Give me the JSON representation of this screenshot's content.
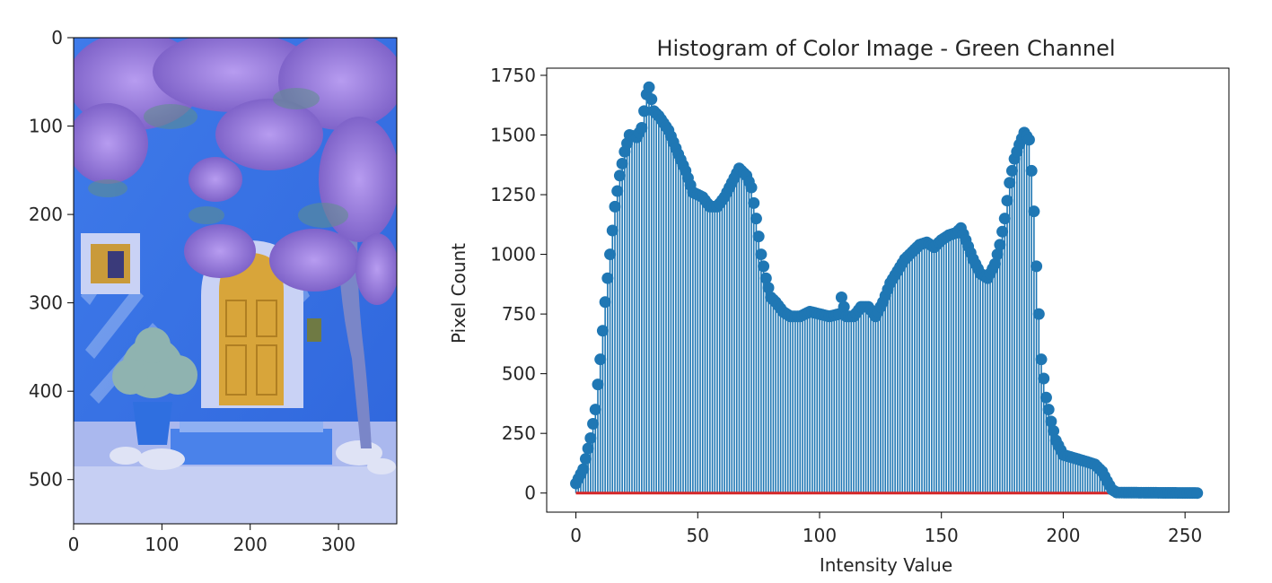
{
  "image_panel": {
    "type": "image",
    "xlim": [
      0,
      366
    ],
    "ylim": [
      550,
      0
    ],
    "xticks": [
      0,
      100,
      200,
      300
    ],
    "yticks": [
      0,
      100,
      200,
      300,
      400,
      500
    ],
    "scene": "blue house wall with a yellow arched door, a small window, a potted plant and purple flowering vines"
  },
  "chart_data": {
    "type": "stem",
    "title": "Histogram of Color Image - Green Channel",
    "xlabel": "Intensity Value",
    "ylabel": "Pixel Count",
    "xlim": [
      -12,
      268
    ],
    "ylim": [
      -80,
      1780
    ],
    "xticks": [
      0,
      50,
      100,
      150,
      200,
      250
    ],
    "yticks": [
      0,
      250,
      500,
      750,
      1000,
      1250,
      1500,
      1750
    ],
    "stem_color": "#1f77b4",
    "baseline_color": "#d62728",
    "anchors": [
      [
        0,
        40
      ],
      [
        3,
        100
      ],
      [
        6,
        230
      ],
      [
        8,
        350
      ],
      [
        10,
        560
      ],
      [
        12,
        800
      ],
      [
        14,
        1000
      ],
      [
        16,
        1200
      ],
      [
        18,
        1330
      ],
      [
        20,
        1430
      ],
      [
        22,
        1500
      ],
      [
        25,
        1490
      ],
      [
        27,
        1530
      ],
      [
        29,
        1670
      ],
      [
        30,
        1700
      ],
      [
        32,
        1600
      ],
      [
        34,
        1580
      ],
      [
        36,
        1550
      ],
      [
        38,
        1520
      ],
      [
        40,
        1470
      ],
      [
        42,
        1420
      ],
      [
        45,
        1350
      ],
      [
        48,
        1260
      ],
      [
        50,
        1250
      ],
      [
        52,
        1240
      ],
      [
        55,
        1200
      ],
      [
        58,
        1200
      ],
      [
        61,
        1240
      ],
      [
        64,
        1300
      ],
      [
        67,
        1360
      ],
      [
        70,
        1330
      ],
      [
        72,
        1280
      ],
      [
        74,
        1150
      ],
      [
        76,
        1000
      ],
      [
        78,
        900
      ],
      [
        80,
        820
      ],
      [
        82,
        800
      ],
      [
        85,
        760
      ],
      [
        88,
        740
      ],
      [
        92,
        740
      ],
      [
        96,
        760
      ],
      [
        100,
        750
      ],
      [
        104,
        740
      ],
      [
        108,
        750
      ],
      [
        109,
        820
      ],
      [
        111,
        740
      ],
      [
        114,
        740
      ],
      [
        117,
        780
      ],
      [
        120,
        780
      ],
      [
        123,
        740
      ],
      [
        126,
        800
      ],
      [
        129,
        880
      ],
      [
        132,
        930
      ],
      [
        135,
        980
      ],
      [
        138,
        1010
      ],
      [
        141,
        1040
      ],
      [
        144,
        1050
      ],
      [
        147,
        1030
      ],
      [
        150,
        1060
      ],
      [
        153,
        1080
      ],
      [
        156,
        1090
      ],
      [
        158,
        1110
      ],
      [
        160,
        1060
      ],
      [
        163,
        980
      ],
      [
        166,
        920
      ],
      [
        169,
        900
      ],
      [
        172,
        960
      ],
      [
        174,
        1040
      ],
      [
        176,
        1150
      ],
      [
        178,
        1300
      ],
      [
        180,
        1400
      ],
      [
        182,
        1460
      ],
      [
        184,
        1510
      ],
      [
        186,
        1480
      ],
      [
        187,
        1350
      ],
      [
        188,
        1180
      ],
      [
        189,
        950
      ],
      [
        190,
        750
      ],
      [
        191,
        560
      ],
      [
        193,
        400
      ],
      [
        195,
        300
      ],
      [
        197,
        220
      ],
      [
        200,
        160
      ],
      [
        205,
        145
      ],
      [
        210,
        130
      ],
      [
        213,
        120
      ],
      [
        216,
        90
      ],
      [
        218,
        50
      ],
      [
        220,
        15
      ],
      [
        222,
        2
      ],
      [
        256,
        0
      ]
    ]
  }
}
